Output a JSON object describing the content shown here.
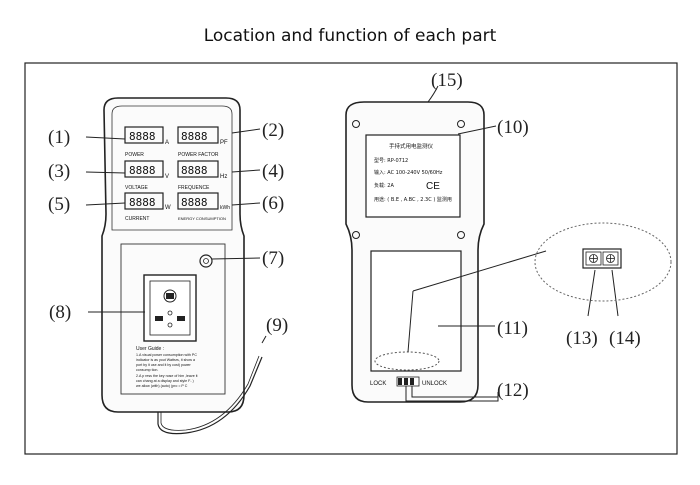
{
  "title": "Location and function of each part",
  "labels": {
    "l1": "(1)",
    "l2": "(2)",
    "l3": "(3)",
    "l4": "(4)",
    "l5": "(5)",
    "l6": "(6)",
    "l7": "(7)",
    "l8": "(8)",
    "l9": "(9)",
    "l10": "(10)",
    "l11": "(11)",
    "l12": "(12)",
    "l13": "(13)",
    "l14": "(14)",
    "l15": "(15)"
  },
  "front": {
    "display_units": {
      "power": "A",
      "pf": "PF",
      "voltage": "V",
      "freq": "Hz",
      "current": "W",
      "energy": "kWh"
    },
    "display_captions": {
      "power": "POWER",
      "pf": "POWER FACTOR",
      "voltage": "VOLTAGE",
      "freq": "FREQUENCE",
      "current": "CURRENT",
      "energy": "ENERGY CONSUMPTION"
    },
    "digits": "8888",
    "guide_title": "User Guide :",
    "guide_lines": [
      "1.A visual power consumption with PC",
      "indicator is as yout Wattsrs, it show a",
      "port by it use and it by cost) power",
      "consump tion.",
      "2.A p ress the key nose of him ,leave it",
      "can chang at a display and style F- )",
      "we allow (with) (auto) (pro = P C"
    ]
  },
  "back": {
    "label_title": "手持式用电监测仪",
    "label_lines": [
      "型号: RP-0712",
      "输入: AC 100-240V 50/60Hz",
      "负载: 2A",
      "CE",
      "用途: ( B.E , A.BC , 2.3C ) 监测用"
    ],
    "lock": "LOCK",
    "unlock": "UNLOCK"
  }
}
